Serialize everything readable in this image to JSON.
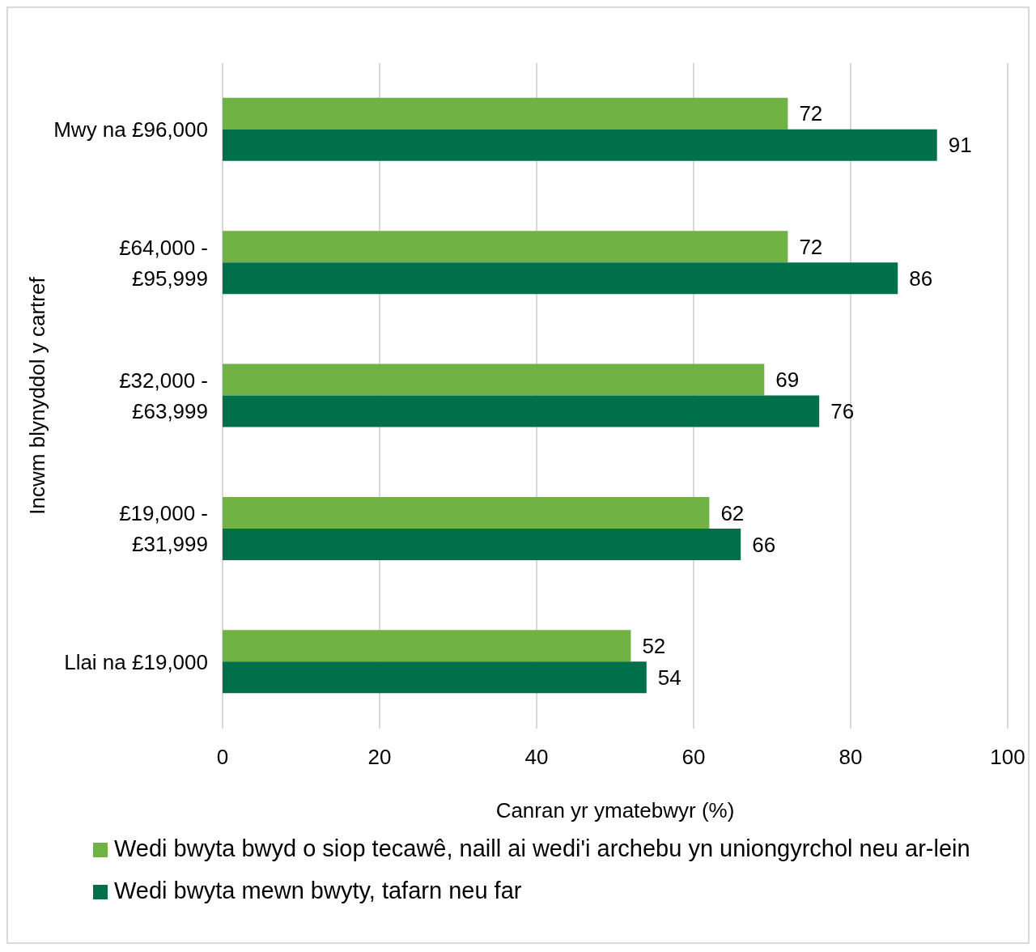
{
  "chart_data": {
    "type": "bar",
    "orientation": "horizontal",
    "xlabel": "Canran yr ymatebwyr (%)",
    "ylabel": "Incwm blynyddol y cartref",
    "categories": [
      "Mwy na £96,000",
      "£64,000 - £95,999",
      "£32,000 - £63,999",
      "£19,000 - £31,999",
      "Llai na £19,000"
    ],
    "series": [
      {
        "name": "Wedi bwyta bwyd o siop tecawê, naill ai wedi'i archebu yn uniongyrchol neu ar-lein",
        "color": "#70b244",
        "values": [
          72,
          72,
          69,
          62,
          52
        ]
      },
      {
        "name": "Wedi bwyta mewn bwyty, tafarn neu far",
        "color": "#00704a",
        "values": [
          91,
          86,
          76,
          66,
          54
        ]
      }
    ],
    "xlim": [
      0,
      100
    ],
    "xticks": [
      0,
      20,
      40,
      60,
      80,
      100
    ],
    "grid": "x",
    "legend": "bottom",
    "data_labels": true
  }
}
